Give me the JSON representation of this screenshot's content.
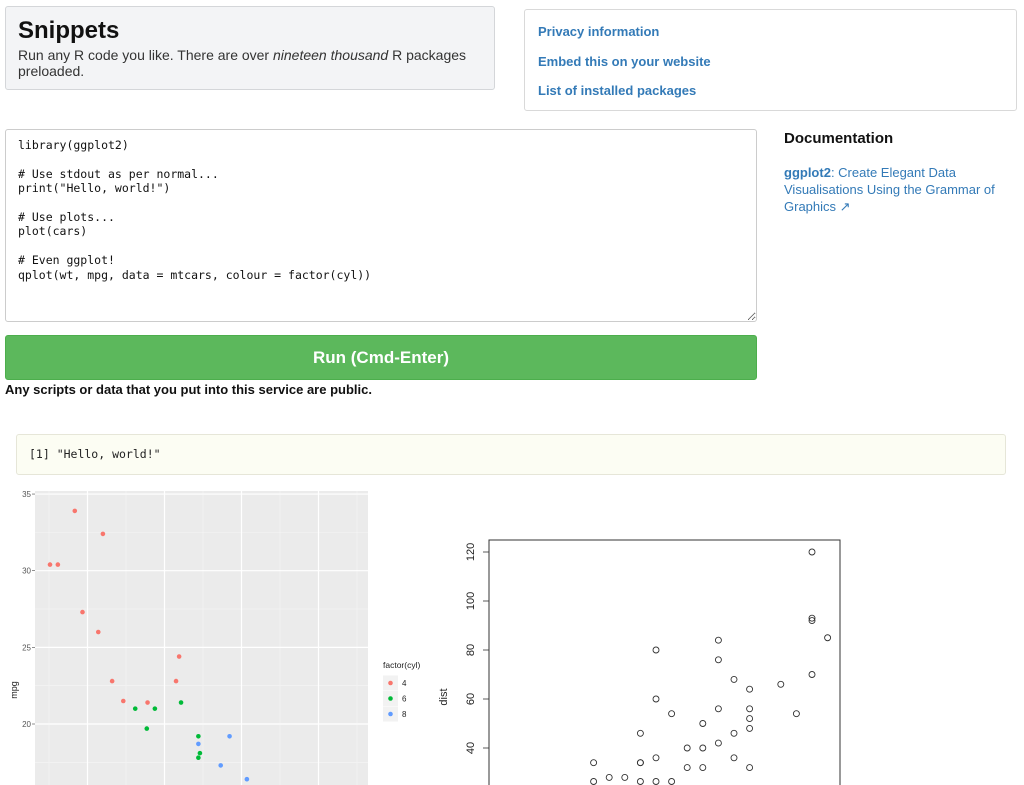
{
  "header": {
    "title": "Snippets",
    "subtitle_pre": "Run any R code you like. There are over ",
    "subtitle_em": "nineteen thousand",
    "subtitle_post": " R packages preloaded."
  },
  "links": [
    "Privacy information",
    "Embed this on your website",
    "List of installed packages"
  ],
  "documentation": {
    "heading": "Documentation",
    "package": "ggplot2",
    "description": ": Create Elegant Data Visualisations Using the Grammar of Graphics",
    "icon": "external-link-icon"
  },
  "editor": {
    "code": "library(ggplot2)\n\n# Use stdout as per normal...\nprint(\"Hello, world!\")\n\n# Use plots...\nplot(cars)\n\n# Even ggplot!\nqplot(wt, mpg, data = mtcars, colour = factor(cyl))"
  },
  "run_button": {
    "label": "Run (Cmd-Enter)",
    "color": "#5cb85c"
  },
  "notice": "Any scripts or data that you put into this service are public.",
  "output": {
    "text": "[1] \"Hello, world!\""
  },
  "colors": {
    "link": "#337ab7",
    "cyl4": "#f8766d",
    "cyl6": "#00ba38",
    "cyl8": "#619cff"
  },
  "chart_data": [
    {
      "type": "scatter",
      "xlabel": "",
      "ylabel": "mpg",
      "xlim": [
        1.32,
        5.64
      ],
      "ylim": [
        16,
        35.2
      ],
      "yticks": [
        "35",
        "30",
        "25",
        "20"
      ],
      "grid": true,
      "legend": {
        "title": "factor(cyl)",
        "position": "right",
        "entries": [
          "4",
          "6",
          "8"
        ]
      },
      "series": [
        {
          "name": "4",
          "points": [
            [
              1.513,
              30.4
            ],
            [
              1.615,
              30.4
            ],
            [
              1.835,
              33.9
            ],
            [
              1.935,
              27.3
            ],
            [
              2.14,
              26.0
            ],
            [
              2.2,
              32.4
            ],
            [
              2.32,
              22.8
            ],
            [
              2.465,
              21.5
            ],
            [
              2.78,
              21.4
            ],
            [
              3.15,
              22.8
            ],
            [
              3.19,
              24.4
            ]
          ]
        },
        {
          "name": "6",
          "points": [
            [
              2.62,
              21.0
            ],
            [
              2.875,
              21.0
            ],
            [
              2.77,
              19.7
            ],
            [
              3.215,
              21.4
            ],
            [
              3.44,
              19.2
            ],
            [
              3.44,
              17.8
            ],
            [
              3.46,
              18.1
            ]
          ]
        },
        {
          "name": "8",
          "points": [
            [
              3.44,
              18.7
            ],
            [
              3.73,
              17.3
            ],
            [
              3.845,
              19.2
            ],
            [
              4.07,
              16.4
            ]
          ]
        }
      ]
    },
    {
      "type": "scatter",
      "xlabel": "",
      "ylabel": "dist",
      "xlim": [
        3.3,
        25.9
      ],
      "ylim": [
        25,
        124.9
      ],
      "yticks": [
        "40",
        "60",
        "80",
        "100",
        "120"
      ],
      "grid": false,
      "points": [
        [
          10,
          26
        ],
        [
          10,
          34
        ],
        [
          11,
          28
        ],
        [
          12,
          28
        ],
        [
          13,
          26
        ],
        [
          13,
          34
        ],
        [
          13,
          34
        ],
        [
          13,
          46
        ],
        [
          14,
          26
        ],
        [
          14,
          36
        ],
        [
          14,
          60
        ],
        [
          14,
          80
        ],
        [
          15,
          26
        ],
        [
          15,
          54
        ],
        [
          16,
          32
        ],
        [
          16,
          40
        ],
        [
          17,
          32
        ],
        [
          17,
          40
        ],
        [
          17,
          50
        ],
        [
          18,
          42
        ],
        [
          18,
          56
        ],
        [
          18,
          76
        ],
        [
          18,
          84
        ],
        [
          19,
          36
        ],
        [
          19,
          46
        ],
        [
          19,
          68
        ],
        [
          20,
          32
        ],
        [
          20,
          48
        ],
        [
          20,
          52
        ],
        [
          20,
          56
        ],
        [
          20,
          64
        ],
        [
          22,
          66
        ],
        [
          23,
          54
        ],
        [
          24,
          70
        ],
        [
          24,
          92
        ],
        [
          24,
          93
        ],
        [
          24,
          120
        ],
        [
          25,
          85
        ]
      ]
    }
  ]
}
